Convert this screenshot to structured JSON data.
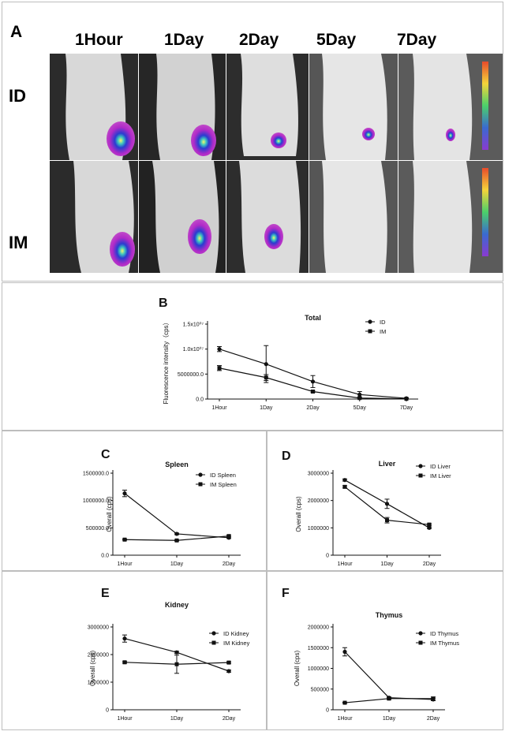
{
  "panelA": {
    "label": "A",
    "timepoints": [
      "1Hour",
      "1Day",
      "2Day",
      "5Day",
      "7Day"
    ],
    "rows": [
      "ID",
      "IM"
    ]
  },
  "charts": [
    {
      "id": "B",
      "title": "Total",
      "type": "line",
      "ylabel": "Fluorescence intensity（cps）",
      "categories": [
        "1Hour",
        "1Day",
        "2Day",
        "5Day",
        "7Day"
      ],
      "yticks": [
        "0.0",
        "5000000.0",
        "1.0x10^7",
        "1.5x10^7"
      ],
      "ylim": [
        0,
        15000000
      ],
      "series": [
        {
          "name": "ID",
          "marker": "circle",
          "values": [
            10000000,
            7000000,
            3500000,
            900000,
            150000
          ],
          "errors": [
            500000,
            3700000,
            1200000,
            600000,
            100000
          ]
        },
        {
          "name": "IM",
          "marker": "square",
          "values": [
            6200000,
            4300000,
            1500000,
            200000,
            50000
          ],
          "errors": [
            500000,
            600000,
            200000,
            150000,
            50000
          ]
        }
      ]
    },
    {
      "id": "C",
      "title": "Spleen",
      "type": "line",
      "ylabel": "Overall (cps)",
      "categories": [
        "1Hour",
        "1Day",
        "2Day"
      ],
      "yticks": [
        "0.0",
        "500000.0",
        "1000000.0",
        "1500000.0"
      ],
      "ylim": [
        0,
        1500000
      ],
      "series": [
        {
          "name": "ID  Spleen",
          "marker": "circle",
          "values": [
            1130000,
            390000,
            320000
          ],
          "errors": [
            60000,
            15000,
            15000
          ]
        },
        {
          "name": "IM  Spleen",
          "marker": "square",
          "values": [
            285000,
            270000,
            350000
          ],
          "errors": [
            10000,
            10000,
            15000
          ]
        }
      ]
    },
    {
      "id": "D",
      "title": "Liver",
      "type": "line",
      "ylabel": "Overall (cps)",
      "categories": [
        "1Hour",
        "1Day",
        "2Day"
      ],
      "yticks": [
        "0",
        "1000000",
        "2000000",
        "3000000"
      ],
      "ylim": [
        0,
        3000000
      ],
      "series": [
        {
          "name": "ID  Liver",
          "marker": "circle",
          "values": [
            2750000,
            1880000,
            1000000
          ],
          "errors": [
            40000,
            170000,
            30000
          ]
        },
        {
          "name": "IM  Liver",
          "marker": "square",
          "values": [
            2500000,
            1280000,
            1120000
          ],
          "errors": [
            40000,
            100000,
            30000
          ]
        }
      ]
    },
    {
      "id": "E",
      "title": "Kidney",
      "type": "line",
      "ylabel": "Overall (cps)",
      "categories": [
        "1Hour",
        "1Day",
        "2Day"
      ],
      "yticks": [
        "0",
        "1000000",
        "2000000",
        "3000000"
      ],
      "ylim": [
        0,
        3000000
      ],
      "series": [
        {
          "name": "ID  Kidney",
          "marker": "circle",
          "values": [
            2580000,
            2080000,
            1400000
          ],
          "errors": [
            130000,
            40000,
            40000
          ]
        },
        {
          "name": "IM  Kidney",
          "marker": "square",
          "values": [
            1720000,
            1650000,
            1710000
          ],
          "errors": [
            30000,
            330000,
            30000
          ]
        }
      ]
    },
    {
      "id": "F",
      "title": "Thymus",
      "type": "line",
      "ylabel": "Overall (cps)",
      "categories": [
        "1Hour",
        "1Day",
        "2Day"
      ],
      "yticks": [
        "0",
        "500000",
        "1000000",
        "1500000",
        "2000000"
      ],
      "ylim": [
        0,
        2000000
      ],
      "series": [
        {
          "name": "ID Thymus",
          "marker": "circle",
          "values": [
            1400000,
            290000,
            250000
          ],
          "errors": [
            100000,
            20000,
            30000
          ]
        },
        {
          "name": "IM  Thymus",
          "marker": "square",
          "values": [
            170000,
            270000,
            270000
          ],
          "errors": [
            10000,
            20000,
            40000
          ]
        }
      ]
    }
  ]
}
